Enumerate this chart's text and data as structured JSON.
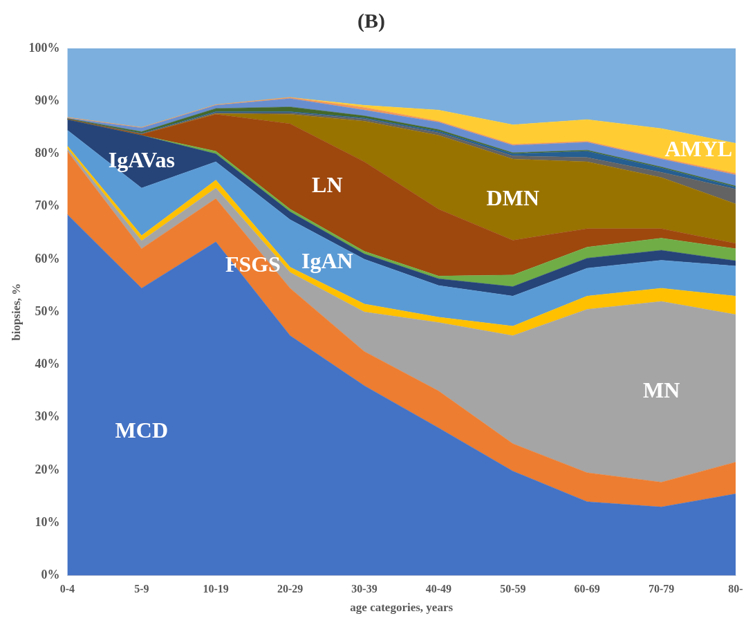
{
  "chart_data": {
    "type": "area",
    "title": "(B)",
    "xlabel": "age categories, years",
    "ylabel": "biopsies, %",
    "categories": [
      "0-4",
      "5-9",
      "10-19",
      "20-29",
      "30-39",
      "40-49",
      "50-59",
      "60-69",
      "70-79",
      "80-"
    ],
    "stacked": true,
    "legend": false,
    "grid": false,
    "ylim": [
      0,
      100
    ],
    "yticks": [
      {
        "value": 0,
        "label": "0%"
      },
      {
        "value": 10,
        "label": "10%"
      },
      {
        "value": 20,
        "label": "20%"
      },
      {
        "value": 30,
        "label": "30%"
      },
      {
        "value": 40,
        "label": "40%"
      },
      {
        "value": 50,
        "label": "50%"
      },
      {
        "value": 60,
        "label": "60%"
      },
      {
        "value": 70,
        "label": "70%"
      },
      {
        "value": 80,
        "label": "80%"
      },
      {
        "value": 90,
        "label": "90%"
      },
      {
        "value": 100,
        "label": "100%"
      }
    ],
    "series": [
      {
        "name": "MCD",
        "color": "#4472c4",
        "values": [
          68.5,
          54.5,
          63.3,
          45.5,
          36,
          28,
          19.8,
          14,
          13,
          15.5
        ]
      },
      {
        "name": "FSGS",
        "color": "#ed7d31",
        "values": [
          12,
          7.5,
          8.2,
          9,
          6.5,
          7,
          5.2,
          5.5,
          4.7,
          6
        ]
      },
      {
        "name": "MN",
        "color": "#a5a5a5",
        "values": [
          0.5,
          1.5,
          2,
          3,
          7.5,
          13,
          20.5,
          31,
          34.3,
          28
        ]
      },
      {
        "color": "#ffc000",
        "values": [
          0.5,
          1,
          1.5,
          1,
          1.5,
          1,
          1.8,
          2.5,
          2.5,
          3.5
        ]
      },
      {
        "name": "IgAN",
        "color": "#5b9bd5",
        "values": [
          3,
          9,
          3.5,
          9,
          8.5,
          6,
          5.7,
          5.3,
          5.3,
          5.7
        ]
      },
      {
        "name": "IgAVas",
        "color": "#264478",
        "values": [
          2,
          10,
          1.5,
          1.5,
          1,
          1.3,
          1.8,
          1.9,
          1.9,
          1
        ]
      },
      {
        "color": "#70ad47",
        "values": [
          0,
          0,
          0.5,
          0.5,
          0.5,
          0.5,
          2.2,
          2.1,
          2.3,
          2.3
        ]
      },
      {
        "name": "LN",
        "color": "#9e480e",
        "values": [
          0.1,
          0.2,
          7,
          16.2,
          17,
          12.7,
          6.6,
          3.5,
          1.8,
          1
        ]
      },
      {
        "name": "DMN",
        "color": "#997300",
        "values": [
          0,
          0,
          0.1,
          1.8,
          7.7,
          14,
          15.4,
          12.7,
          9.7,
          7.5
        ]
      },
      {
        "color": "#636363",
        "values": [
          0,
          0.1,
          0.2,
          0.3,
          0.4,
          0.5,
          0.6,
          0.8,
          1,
          2.8
        ]
      },
      {
        "color": "#255e91",
        "values": [
          0,
          0.1,
          0.2,
          0.2,
          0.2,
          0.3,
          0.4,
          1.2,
          0.8,
          0.4
        ]
      },
      {
        "color": "#43682b",
        "values": [
          0.1,
          0.3,
          0.6,
          0.9,
          0.4,
          0.3,
          0.2,
          0.2,
          0.2,
          0.2
        ]
      },
      {
        "color": "#698ed0",
        "values": [
          0.1,
          0.7,
          0.6,
          1.6,
          1.1,
          1.4,
          1.4,
          1.5,
          1.5,
          2.1
        ]
      },
      {
        "color": "#f1975a",
        "values": [
          0.1,
          0.1,
          0.1,
          0.2,
          0.5,
          0.2,
          0.2,
          0.2,
          0.2,
          0.3
        ]
      },
      {
        "name": "AMYL",
        "color": "#ffcd33",
        "values": [
          0,
          0,
          0,
          0,
          0.4,
          2.1,
          3.7,
          4.1,
          5.6,
          5.7
        ]
      },
      {
        "color": "#7cafdd",
        "values": [
          13.1,
          15,
          10.7,
          9.3,
          10.8,
          11.7,
          14.5,
          13.5,
          15.2,
          18
        ]
      }
    ]
  }
}
